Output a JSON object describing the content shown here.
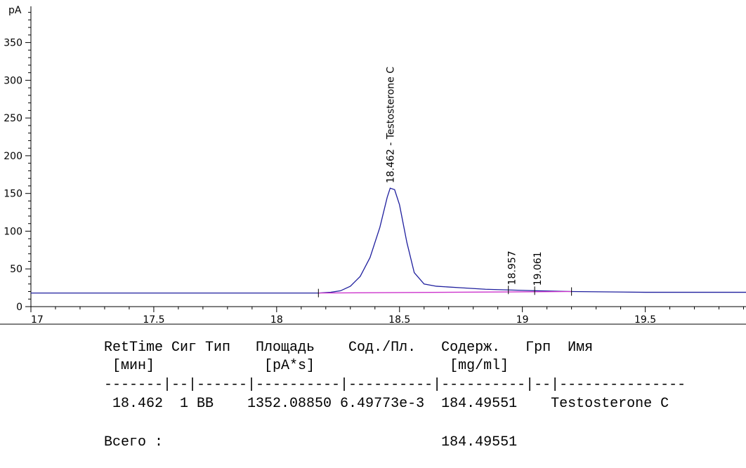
{
  "chart_data": {
    "type": "line",
    "y_label": "pA",
    "xlim": [
      17,
      19.91
    ],
    "ylim": [
      0,
      398
    ],
    "xticks": [
      17,
      17.5,
      18,
      18.5,
      19,
      19.5
    ],
    "yticks": [
      0,
      50,
      100,
      150,
      200,
      250,
      300,
      350
    ],
    "xminorticks": [
      17.1,
      17.2,
      17.3,
      17.4,
      17.6,
      17.7,
      17.8,
      17.9,
      18.1,
      18.2,
      18.3,
      18.4,
      18.6,
      18.7,
      18.8,
      18.9,
      19.1,
      19.2,
      19.3,
      19.4,
      19.6,
      19.7,
      19.8,
      19.9
    ],
    "yminorticks": [
      10,
      20,
      30,
      40,
      60,
      70,
      80,
      90,
      110,
      120,
      130,
      140,
      160,
      170,
      180,
      190,
      210,
      220,
      230,
      240,
      260,
      270,
      280,
      290,
      310,
      320,
      330,
      340,
      360,
      370,
      380,
      390
    ],
    "series": [
      {
        "color": "#1f1f9e",
        "x": [
          17,
          18.17,
          18.22,
          18.26,
          18.3,
          18.34,
          18.38,
          18.42,
          18.45,
          18.462,
          18.48,
          18.5,
          18.53,
          18.56,
          18.6,
          18.65,
          18.75,
          18.85,
          18.957,
          19.061,
          19.2,
          19.5,
          19.91
        ],
        "values": [
          18,
          18,
          19,
          21,
          27,
          40,
          65,
          105,
          145,
          157,
          155,
          135,
          85,
          45,
          30,
          27,
          25,
          23,
          22,
          21,
          20,
          19,
          19
        ]
      },
      {
        "color": "#cc33cc",
        "x": [
          18.17,
          19.2
        ],
        "values": [
          18,
          20
        ]
      }
    ],
    "peak_marks": [
      18.17,
      18.943,
      19.05,
      19.2
    ],
    "annotations": [
      {
        "value": 18.462,
        "label": "18.462  -  Testosterone C"
      },
      {
        "value": 18.957,
        "label": "18.957"
      },
      {
        "value": 19.061,
        "label": "19.061"
      }
    ]
  },
  "report": {
    "lines": [
      "RetTime Сиг Тип   Площадь    Сод./Пл.   Содерж.   Грп  Имя",
      " [мин]             [pA*s]                [mg/ml]",
      "-------|--|------|----------|----------|----------|--|---------------",
      " 18.462  1 BB    1352.08850 6.49773e-3  184.49551    Testosterone C",
      "Всего :                                 184.49551"
    ]
  }
}
